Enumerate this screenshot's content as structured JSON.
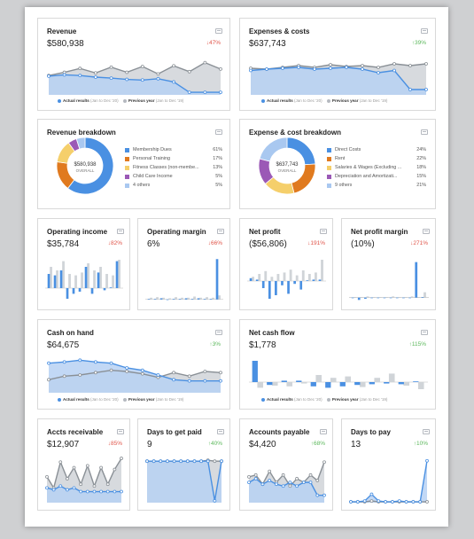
{
  "colors": {
    "blue": "#4a90e2",
    "blue_fill": "#b7d1f3",
    "gray": "#8a9096",
    "gray_fill": "#d0d4d8",
    "down": "#e0554a",
    "up": "#5cb85c"
  },
  "legend": {
    "actual": "Actual results",
    "actual_range": "(Jan to Dec '20)",
    "previous": "Previous year",
    "previous_range": "(Jan to Dec '19)"
  },
  "cards": {
    "revenue": {
      "title": "Revenue",
      "value": "$580,938",
      "change": "47%",
      "direction": "down"
    },
    "expenses": {
      "title": "Expenses & costs",
      "value": "$637,743",
      "change": "39%",
      "direction": "up"
    },
    "revenue_breakdown": {
      "title": "Revenue breakdown",
      "center_value": "$580,938",
      "center_label": "OVERALL",
      "items": [
        {
          "label": "Membership Dues",
          "pct": "61%",
          "value": 61,
          "color": "#4a90e2"
        },
        {
          "label": "Personal Training",
          "pct": "17%",
          "value": 17,
          "color": "#e07a1f"
        },
        {
          "label": "Fitness Classes (non-membe...",
          "pct": "13%",
          "value": 13,
          "color": "#f5cf6b"
        },
        {
          "label": "Child Care Income",
          "pct": "5%",
          "value": 5,
          "color": "#9b59b6"
        },
        {
          "label": "4 others",
          "pct": "5%",
          "value": 5,
          "color": "#a9c8f0"
        }
      ]
    },
    "expense_breakdown": {
      "title": "Expense & cost breakdown",
      "center_value": "$637,743",
      "center_label": "OVERALL",
      "items": [
        {
          "label": "Direct Costs",
          "pct": "24%",
          "value": 24,
          "color": "#4a90e2"
        },
        {
          "label": "Rent",
          "pct": "22%",
          "value": 22,
          "color": "#e07a1f"
        },
        {
          "label": "Salaries & Wages (Excluding ...",
          "pct": "18%",
          "value": 18,
          "color": "#f5cf6b"
        },
        {
          "label": "Depreciation and Amortizati...",
          "pct": "15%",
          "value": 15,
          "color": "#9b59b6"
        },
        {
          "label": "9 others",
          "pct": "21%",
          "value": 21,
          "color": "#a9c8f0"
        }
      ]
    },
    "operating_income": {
      "title": "Operating income",
      "value": "$35,784",
      "change": "82%",
      "direction": "down"
    },
    "operating_margin": {
      "title": "Operating margin",
      "value": "6%",
      "change": "66%",
      "direction": "down"
    },
    "net_profit": {
      "title": "Net profit",
      "value": "($56,806)",
      "change": "191%",
      "direction": "down"
    },
    "net_profit_margin": {
      "title": "Net profit margin",
      "value": "(10%)",
      "change": "271%",
      "direction": "down"
    },
    "cash_on_hand": {
      "title": "Cash on hand",
      "value": "$64,675",
      "change": "3%",
      "direction": "up"
    },
    "net_cash_flow": {
      "title": "Net cash flow",
      "value": "$1,778",
      "change": "115%",
      "direction": "up"
    },
    "accts_receivable": {
      "title": "Accts receivable",
      "value": "$12,907",
      "change": "85%",
      "direction": "down"
    },
    "days_to_get_paid": {
      "title": "Days to get paid",
      "value": "9",
      "change": "40%",
      "direction": "up"
    },
    "accounts_payable": {
      "title": "Accounts payable",
      "value": "$4,420",
      "change": "68%",
      "direction": "up"
    },
    "days_to_pay": {
      "title": "Days to pay",
      "value": "13",
      "change": "10%",
      "direction": "up"
    }
  },
  "chart_data": [
    {
      "id": "revenue",
      "type": "area",
      "series": [
        {
          "name": "Actual results",
          "values": [
            58,
            62,
            60,
            55,
            52,
            48,
            46,
            50,
            40,
            8,
            8,
            8
          ]
        },
        {
          "name": "Previous year",
          "values": [
            60,
            70,
            82,
            68,
            86,
            70,
            88,
            65,
            90,
            72,
            100,
            80
          ]
        }
      ],
      "ylim": [
        0,
        110
      ]
    },
    {
      "id": "expenses",
      "type": "area",
      "series": [
        {
          "name": "Actual results",
          "values": [
            55,
            58,
            60,
            62,
            58,
            60,
            62,
            58,
            50,
            55,
            12,
            12
          ]
        },
        {
          "name": "Previous year",
          "values": [
            60,
            58,
            62,
            66,
            62,
            68,
            64,
            66,
            62,
            70,
            66,
            70
          ]
        }
      ],
      "ylim": [
        0,
        80
      ]
    },
    {
      "id": "operating_income",
      "type": "bar",
      "values": [
        20,
        18,
        25,
        -15,
        -8,
        -5,
        30,
        -8,
        22,
        -3,
        1,
        38
      ],
      "prev": [
        30,
        25,
        38,
        20,
        18,
        22,
        35,
        25,
        30,
        20,
        18,
        40
      ],
      "ylim": [
        -20,
        45
      ]
    },
    {
      "id": "operating_margin",
      "type": "bar",
      "values": [
        1,
        1,
        2,
        -1,
        1,
        1,
        2,
        1,
        2,
        1,
        1,
        70
      ],
      "prev": [
        3,
        4,
        3,
        2,
        4,
        3,
        3,
        5,
        3,
        4,
        3,
        7
      ],
      "ylim": [
        -5,
        75
      ]
    },
    {
      "id": "net_profit",
      "type": "bar",
      "values": [
        4,
        2,
        -10,
        -25,
        -20,
        -6,
        -18,
        -4,
        -12,
        1,
        2,
        2
      ],
      "prev": [
        6,
        10,
        14,
        6,
        10,
        12,
        16,
        8,
        15,
        10,
        12,
        30
      ],
      "ylim": [
        -30,
        35
      ]
    },
    {
      "id": "net_profit_margin",
      "type": "bar",
      "values": [
        -1,
        -4,
        -2,
        -1,
        -1,
        -1,
        -1,
        -1,
        -1,
        -1,
        60,
        1
      ],
      "prev": [
        1,
        1,
        2,
        1,
        1,
        1,
        2,
        1,
        1,
        2,
        1,
        9
      ],
      "ylim": [
        -8,
        70
      ]
    },
    {
      "id": "cash_on_hand",
      "type": "area",
      "series": [
        {
          "name": "Actual results",
          "values": [
            50,
            52,
            55,
            52,
            50,
            42,
            38,
            30,
            22,
            20,
            20,
            20
          ]
        },
        {
          "name": "Previous year",
          "values": [
            22,
            28,
            30,
            34,
            38,
            36,
            32,
            26,
            34,
            28,
            36,
            34
          ]
        }
      ],
      "ylim": [
        0,
        60
      ]
    },
    {
      "id": "net_cash_flow",
      "type": "bar",
      "values": [
        30,
        -4,
        2,
        2,
        -6,
        -8,
        -6,
        -4,
        -3,
        -2,
        -3,
        1
      ],
      "prev": [
        -8,
        -5,
        -6,
        -2,
        10,
        6,
        8,
        -7,
        6,
        12,
        -5,
        -10
      ],
      "ylim": [
        -15,
        35
      ]
    },
    {
      "id": "accts_receivable",
      "type": "area",
      "series": [
        {
          "name": "Actual results",
          "values": [
            16,
            14,
            18,
            14,
            16,
            12,
            12,
            12,
            12,
            12,
            12,
            12
          ]
        },
        {
          "name": "Previous year",
          "values": [
            28,
            16,
            44,
            26,
            38,
            20,
            40,
            18,
            38,
            20,
            36,
            48
          ]
        }
      ],
      "ylim": [
        0,
        50
      ]
    },
    {
      "id": "days_to_get_paid",
      "type": "area",
      "series": [
        {
          "name": "Actual results",
          "values": [
            45,
            45,
            45,
            45,
            45,
            45,
            45,
            45,
            45,
            45,
            2,
            45
          ]
        },
        {
          "name": "Previous year",
          "values": [
            45,
            45,
            45,
            45,
            45,
            45,
            45,
            45,
            45,
            46,
            45,
            45
          ]
        }
      ],
      "ylim": [
        0,
        50
      ]
    },
    {
      "id": "accounts_payable",
      "type": "area",
      "series": [
        {
          "name": "Actual results",
          "values": [
            22,
            26,
            20,
            24,
            20,
            18,
            22,
            18,
            22,
            22,
            8,
            8
          ]
        },
        {
          "name": "Previous year",
          "values": [
            28,
            30,
            20,
            34,
            22,
            30,
            18,
            26,
            22,
            30,
            24,
            44
          ]
        }
      ],
      "ylim": [
        0,
        50
      ]
    },
    {
      "id": "days_to_pay",
      "type": "area",
      "series": [
        {
          "name": "Actual results",
          "values": [
            1,
            1,
            2,
            10,
            2,
            1,
            1,
            2,
            1,
            1,
            1,
            50
          ]
        },
        {
          "name": "Previous year",
          "values": [
            1,
            1,
            1,
            2,
            1,
            1,
            1,
            1,
            1,
            1,
            1,
            1
          ]
        }
      ],
      "ylim": [
        0,
        55
      ]
    }
  ]
}
